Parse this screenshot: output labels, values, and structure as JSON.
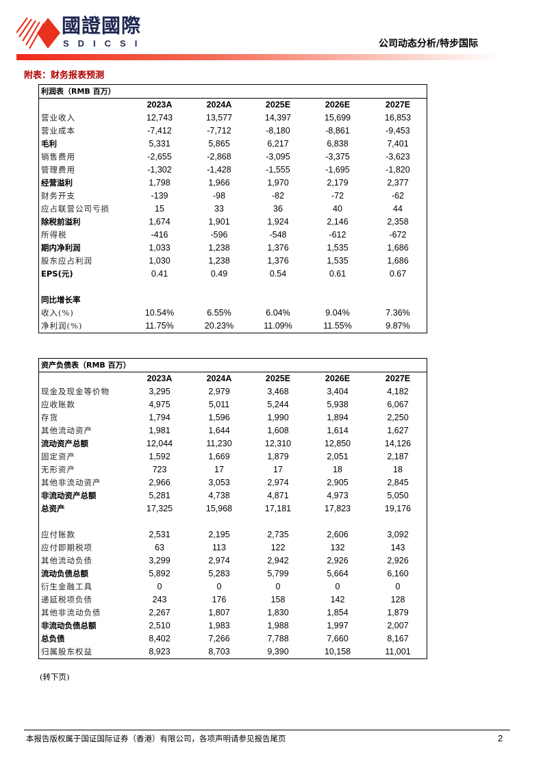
{
  "header": {
    "brand_cn": "國證國際",
    "brand_en": "SDICSI",
    "doc_type": "公司动态分析/特步国际",
    "accent": "#ee2a1a"
  },
  "section_title": "附表：财务报表预测",
  "years": [
    "2023A",
    "2024A",
    "2025E",
    "2026E",
    "2027E"
  ],
  "income": {
    "title": "利润表（RMB 百万）",
    "rows": [
      {
        "label": "营业收入",
        "values": [
          "12,743",
          "13,577",
          "14,397",
          "15,699",
          "16,853"
        ]
      },
      {
        "label": "营业成本",
        "values": [
          "-7,412",
          "-7,712",
          "-8,180",
          "-8,861",
          "-9,453"
        ]
      },
      {
        "label": "毛利",
        "bold": true,
        "values": [
          "5,331",
          "5,865",
          "6,217",
          "6,838",
          "7,401"
        ]
      },
      {
        "label": "销售费用",
        "values": [
          "-2,655",
          "-2,868",
          "-3,095",
          "-3,375",
          "-3,623"
        ]
      },
      {
        "label": "管理费用",
        "values": [
          "-1,302",
          "-1,428",
          "-1,555",
          "-1,695",
          "-1,820"
        ]
      },
      {
        "label": "经营溢利",
        "bold": true,
        "values": [
          "1,798",
          "1,966",
          "1,970",
          "2,179",
          "2,377"
        ]
      },
      {
        "label": "财务开支",
        "values": [
          "-139",
          "-98",
          "-82",
          "-72",
          "-62"
        ]
      },
      {
        "label": "应占联营公司亏损",
        "values": [
          "15",
          "33",
          "36",
          "40",
          "44"
        ]
      },
      {
        "label": "除税前溢利",
        "bold": true,
        "values": [
          "1,674",
          "1,901",
          "1,924",
          "2,146",
          "2,358"
        ]
      },
      {
        "label": "所得税",
        "values": [
          "-416",
          "-596",
          "-548",
          "-612",
          "-672"
        ]
      },
      {
        "label": "期内净利润",
        "bold": true,
        "values": [
          "1,033",
          "1,238",
          "1,376",
          "1,535",
          "1,686"
        ]
      },
      {
        "label": "股东应占利润",
        "values": [
          "1,030",
          "1,238",
          "1,376",
          "1,535",
          "1,686"
        ]
      },
      {
        "label": "EPS(元)",
        "bold": true,
        "values": [
          "0.41",
          "0.49",
          "0.54",
          "0.61",
          "0.67"
        ]
      },
      {
        "label": "",
        "values": []
      },
      {
        "label": "同比增长率",
        "bold": true,
        "values": []
      },
      {
        "label": "收入(%)",
        "values": [
          "10.54%",
          "6.55%",
          "6.04%",
          "9.04%",
          "7.36%"
        ]
      },
      {
        "label": "净利润(%)",
        "values": [
          "11.75%",
          "20.23%",
          "11.09%",
          "11.55%",
          "9.87%"
        ]
      }
    ]
  },
  "balance": {
    "title": "资产负债表（RMB 百万）",
    "rows": [
      {
        "label": "现金及现金等价物",
        "values": [
          "3,295",
          "2,979",
          "3,468",
          "3,404",
          "4,182"
        ]
      },
      {
        "label": "应收账款",
        "values": [
          "4,975",
          "5,011",
          "5,244",
          "5,938",
          "6,067"
        ]
      },
      {
        "label": "存货",
        "values": [
          "1,794",
          "1,596",
          "1,990",
          "1,894",
          "2,250"
        ]
      },
      {
        "label": "其他流动资产",
        "values": [
          "1,981",
          "1,644",
          "1,608",
          "1,614",
          "1,627"
        ]
      },
      {
        "label": "流动资产总额",
        "bold": true,
        "values": [
          "12,044",
          "11,230",
          "12,310",
          "12,850",
          "14,126"
        ]
      },
      {
        "label": "固定资产",
        "values": [
          "1,592",
          "1,669",
          "1,879",
          "2,051",
          "2,187"
        ]
      },
      {
        "label": "无形资产",
        "values": [
          "723",
          "17",
          "17",
          "18",
          "18"
        ]
      },
      {
        "label": "其他非流动资产",
        "values": [
          "2,966",
          "3,053",
          "2,974",
          "2,905",
          "2,845"
        ]
      },
      {
        "label": "非流动资产总额",
        "bold": true,
        "values": [
          "5,281",
          "4,738",
          "4,871",
          "4,973",
          "5,050"
        ]
      },
      {
        "label": "总资产",
        "bold": true,
        "values": [
          "17,325",
          "15,968",
          "17,181",
          "17,823",
          "19,176"
        ]
      },
      {
        "label": "",
        "values": []
      },
      {
        "label": "应付账款",
        "values": [
          "2,531",
          "2,195",
          "2,735",
          "2,606",
          "3,092"
        ]
      },
      {
        "label": "应付即期税项",
        "values": [
          "63",
          "113",
          "122",
          "132",
          "143"
        ]
      },
      {
        "label": "其他流动负债",
        "values": [
          "3,299",
          "2,974",
          "2,942",
          "2,926",
          "2,926"
        ]
      },
      {
        "label": "流动负债总额",
        "bold": true,
        "values": [
          "5,892",
          "5,283",
          "5,799",
          "5,664",
          "6,160"
        ]
      },
      {
        "label": "衍生金融工具",
        "values": [
          "0",
          "0",
          "0",
          "0",
          "0"
        ]
      },
      {
        "label": "递延税项负债",
        "values": [
          "243",
          "176",
          "158",
          "142",
          "128"
        ]
      },
      {
        "label": "其他非流动负债",
        "values": [
          "2,267",
          "1,807",
          "1,830",
          "1,854",
          "1,879"
        ]
      },
      {
        "label": "非流动负债总额",
        "bold": true,
        "values": [
          "2,510",
          "1,983",
          "1,988",
          "1,997",
          "2,007"
        ]
      },
      {
        "label": "总负债",
        "bold": true,
        "values": [
          "8,402",
          "7,266",
          "7,788",
          "7,660",
          "8,167"
        ]
      },
      {
        "label": "归属股东权益",
        "values": [
          "8,923",
          "8,703",
          "9,390",
          "10,158",
          "11,001"
        ]
      }
    ]
  },
  "continued": "(转下页)",
  "footer": {
    "text": "本报告版权属于国证国际证券（香港）有限公司，各项声明请参见报告尾页",
    "page": "2"
  }
}
